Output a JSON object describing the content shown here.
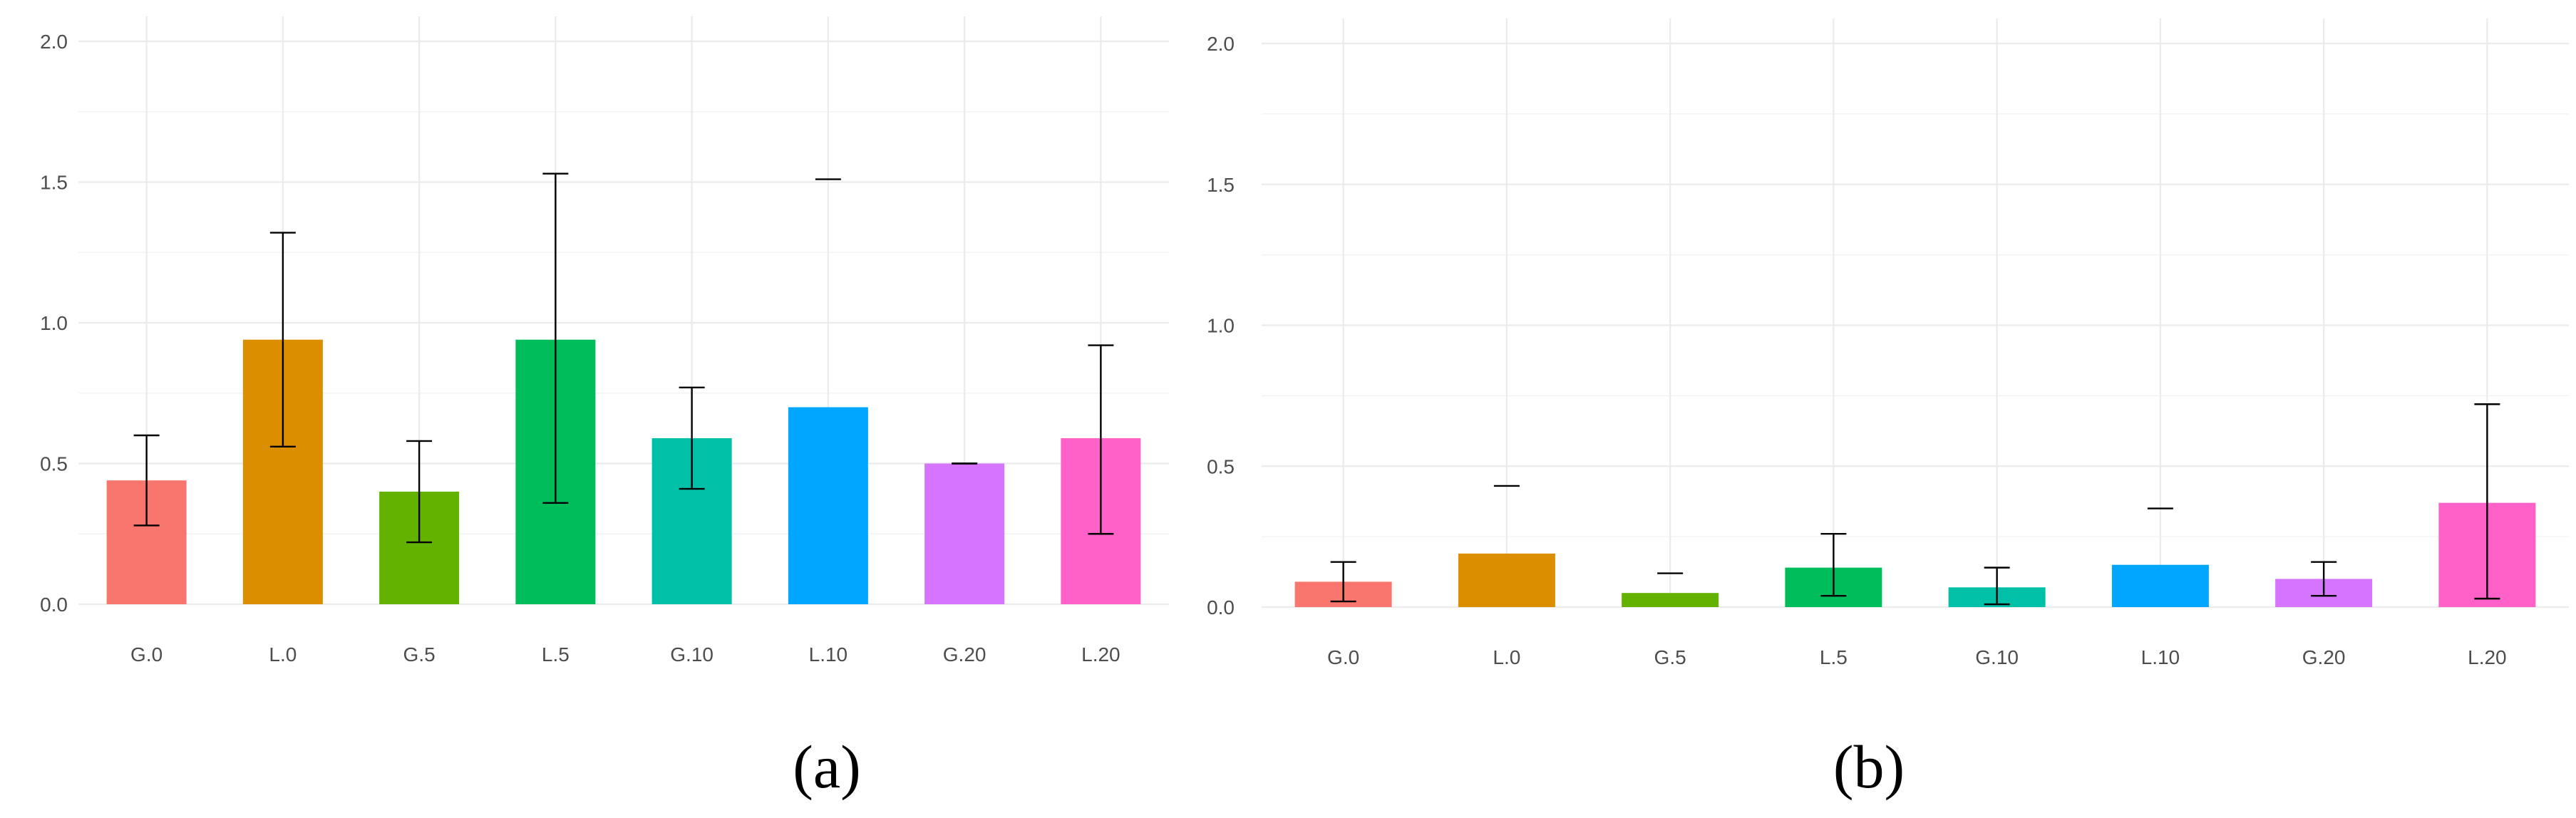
{
  "chart_data": [
    {
      "type": "bar",
      "panel": "(a)",
      "categories": [
        "G.0",
        "L.0",
        "G.5",
        "L.5",
        "G.10",
        "L.10",
        "G.20",
        "L.20"
      ],
      "values": [
        0.44,
        0.94,
        0.4,
        0.94,
        0.59,
        0.7,
        0.5,
        0.59
      ],
      "error_low": [
        0.28,
        0.56,
        0.22,
        0.36,
        0.41,
        null,
        0.5,
        0.25
      ],
      "error_high": [
        0.6,
        1.32,
        0.58,
        1.53,
        0.77,
        1.51,
        0.5,
        0.92
      ],
      "colors": [
        "#F8766D",
        "#DB8E00",
        "#64B200",
        "#00BD5C",
        "#00C1A7",
        "#00A6FF",
        "#D575FE",
        "#FF61C9"
      ],
      "ylim": [
        0,
        2.0
      ],
      "yticks": [
        "0.0",
        "0.5",
        "1.0",
        "1.5",
        "2.0"
      ],
      "title": "",
      "xlabel": "",
      "ylabel": "",
      "grid": true,
      "legend": "none"
    },
    {
      "type": "bar",
      "panel": "(b)",
      "categories": [
        "G.0",
        "L.0",
        "G.5",
        "L.5",
        "G.10",
        "L.10",
        "G.20",
        "L.20"
      ],
      "values": [
        0.09,
        0.19,
        0.05,
        0.14,
        0.07,
        0.15,
        0.1,
        0.37
      ],
      "error_low": [
        0.02,
        null,
        null,
        0.04,
        0.01,
        null,
        0.04,
        0.03
      ],
      "error_high": [
        0.16,
        0.43,
        0.12,
        0.26,
        0.14,
        0.35,
        0.16,
        0.72
      ],
      "colors": [
        "#F8766D",
        "#DB8E00",
        "#64B200",
        "#00BD5C",
        "#00C1A7",
        "#00A6FF",
        "#D575FE",
        "#FF61C9"
      ],
      "ylim": [
        0,
        2.0
      ],
      "yticks": [
        "0.0",
        "0.5",
        "1.0",
        "1.5",
        "2.0"
      ],
      "title": "",
      "xlabel": "",
      "ylabel": "",
      "grid": true,
      "legend": "none"
    }
  ],
  "captions": {
    "panel_a": "(a)",
    "panel_b": "(b)"
  }
}
